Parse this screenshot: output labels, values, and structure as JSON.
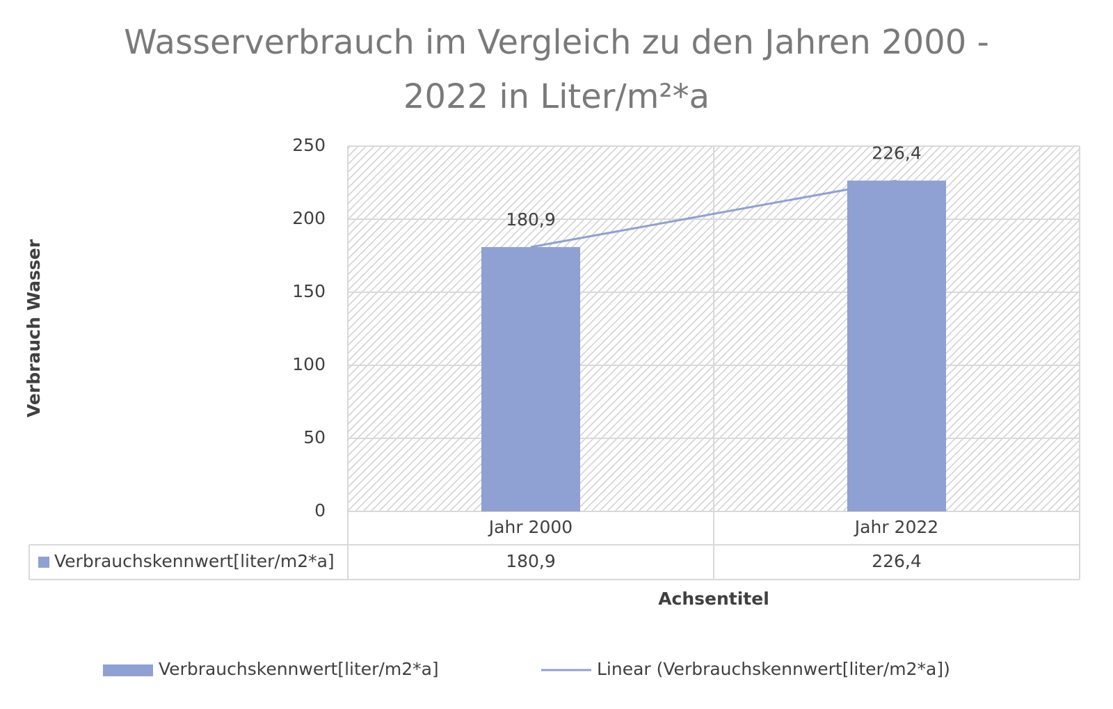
{
  "chart_data": {
    "type": "bar",
    "title": "Wasserverbrauch im Vergleich zu den Jahren 2000 - 2022 in  Liter/m²*a",
    "y_label": "Verbrauch Wasser",
    "x_label": "Achsentitel",
    "categories": [
      "Jahr 2000",
      "Jahr 2022"
    ],
    "series": [
      {
        "name": "Verbrauchskennwert[liter/m2*a]",
        "color": "#8fa0d2",
        "values": [
          180.9,
          226.4
        ],
        "value_labels": [
          "180,9",
          "226,4"
        ]
      }
    ],
    "trendline": {
      "name": "Linear (Verbrauchskennwert[liter/m2*a])",
      "color": "#8fa0d2"
    },
    "ylim": [
      0,
      250
    ],
    "yticks": [
      0,
      50,
      100,
      150,
      200,
      250
    ],
    "grid": true
  }
}
